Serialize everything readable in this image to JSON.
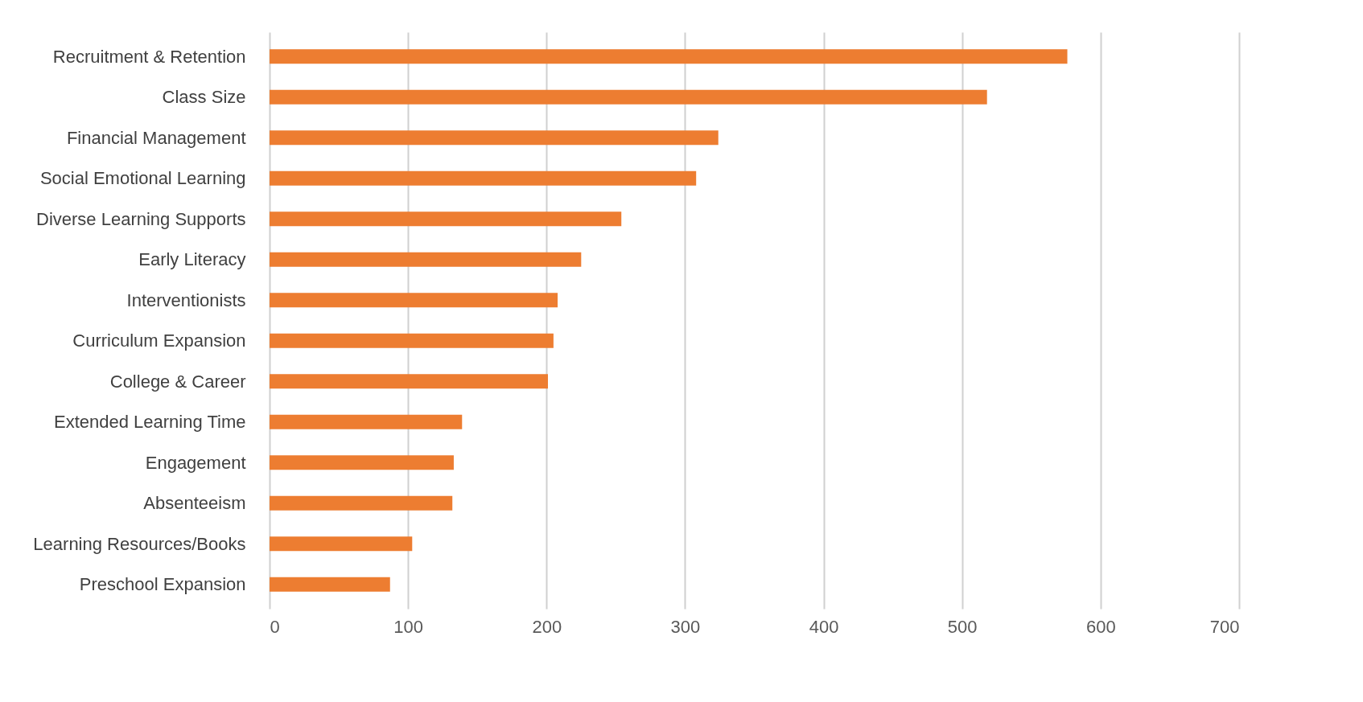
{
  "chart_data": {
    "type": "bar",
    "orientation": "horizontal",
    "categories": [
      "Recruitment & Retention",
      "Class Size",
      "Financial Management",
      "Social Emotional Learning",
      "Diverse Learning Supports",
      "Early Literacy",
      "Interventionists",
      "Curriculum Expansion",
      "College & Career",
      "Extended Learning Time",
      "Engagement",
      "Absenteeism",
      "Learning Resources/Books",
      "Preschool Expansion"
    ],
    "values": [
      576,
      518,
      324,
      308,
      254,
      225,
      208,
      205,
      201,
      139,
      133,
      132,
      103,
      87
    ],
    "color": "#ed7d31",
    "xlim": [
      0,
      700
    ],
    "xticks": [
      0,
      100,
      200,
      300,
      400,
      500,
      600,
      700
    ],
    "grid": "x"
  }
}
